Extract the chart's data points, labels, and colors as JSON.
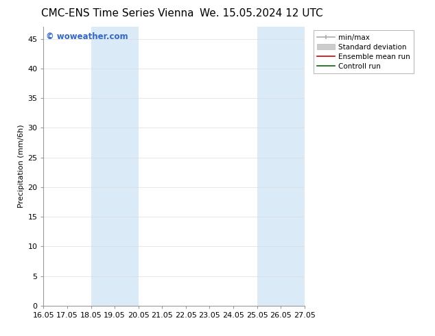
{
  "title_left": "CMC-ENS Time Series Vienna",
  "title_right": "We. 15.05.2024 12 UTC",
  "ylabel": "Precipitation (mm/6h)",
  "xlim_dates": [
    "16.05",
    "17.05",
    "18.05",
    "19.05",
    "20.05",
    "21.05",
    "22.05",
    "23.05",
    "24.05",
    "25.05",
    "26.05",
    "27.05"
  ],
  "xtick_positions": [
    0,
    1,
    2,
    3,
    4,
    5,
    6,
    7,
    8,
    9,
    10,
    11
  ],
  "ylim": [
    0,
    47
  ],
  "yticks": [
    0,
    5,
    10,
    15,
    20,
    25,
    30,
    35,
    40,
    45
  ],
  "shaded_regions": [
    {
      "xstart": 2,
      "xend": 4,
      "color": "#daeaf7"
    },
    {
      "xstart": 9,
      "xend": 11,
      "color": "#daeaf7"
    }
  ],
  "legend_entries": [
    {
      "label": "min/max",
      "color": "#aaaaaa",
      "lw": 1.2,
      "style": "minmax"
    },
    {
      "label": "Standard deviation",
      "color": "#cccccc",
      "lw": 5,
      "style": "band"
    },
    {
      "label": "Ensemble mean run",
      "color": "#cc0000",
      "lw": 1.2,
      "style": "line"
    },
    {
      "label": "Controll run",
      "color": "#006600",
      "lw": 1.2,
      "style": "line"
    }
  ],
  "watermark": "© woweather.com",
  "watermark_color": "#3366cc",
  "background_color": "#ffffff",
  "grid_color": "#dddddd",
  "title_fontsize": 11,
  "axis_fontsize": 8,
  "tick_fontsize": 8,
  "legend_fontsize": 7.5
}
